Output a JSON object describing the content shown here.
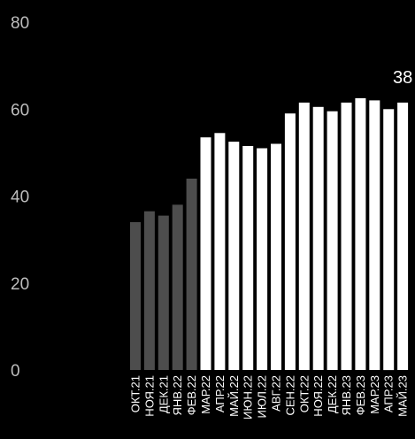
{
  "chart_data": {
    "type": "bar",
    "title": "",
    "xlabel": "",
    "ylabel": "",
    "ylim": [
      0,
      80
    ],
    "yticks": [
      0,
      20,
      40,
      60,
      80
    ],
    "grid": false,
    "legend": "none",
    "categories": [
      "ОКТ.21",
      "НОЯ.21",
      "ДЕК.21",
      "ЯНВ.22",
      "ФЕВ.22",
      "МАР.22",
      "АПР.22",
      "МАЙ.22",
      "ИЮН.22",
      "ИЮЛ.22",
      "АВГ.22",
      "СЕН.22",
      "ОКТ.22",
      "НОЯ.22",
      "ДЕК.22",
      "ЯНВ.23",
      "ФЕВ.23",
      "МАР.23",
      "АПР.23",
      "МАЙ.23"
    ],
    "values": [
      34,
      36.5,
      35.5,
      38,
      44,
      53.5,
      54.5,
      52.5,
      51.5,
      51,
      52,
      59,
      61.5,
      60.5,
      59.5,
      61.5,
      62.5,
      62,
      60,
      61.5
    ],
    "highlight_from_index": 5,
    "colors": {
      "pre": "#4d4d4d",
      "post": "#ffffff",
      "background": "#000000",
      "tick_text": "#bdbdbd"
    },
    "annotation": {
      "text": "38",
      "index": 19
    }
  }
}
